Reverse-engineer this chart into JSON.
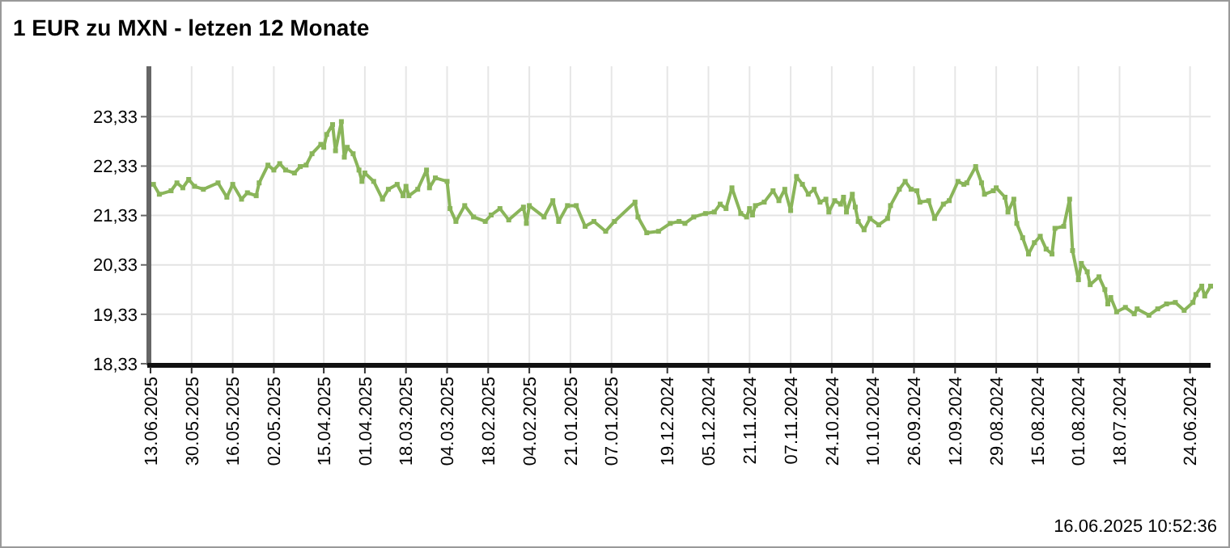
{
  "chart_data": {
    "type": "line",
    "title": "1 EUR zu MXN - letzen 12 Monate",
    "annotations": [
      "16.06.2025 10:52:36"
    ],
    "xlim": [
      "2025-06-13",
      "2024-06-17"
    ],
    "xticks": [
      {
        "value": "2025-06-13",
        "label": "13.06.2025"
      },
      {
        "value": "2025-05-30",
        "label": "30.05.2025"
      },
      {
        "value": "2025-05-16",
        "label": "16.05.2025"
      },
      {
        "value": "2025-05-02",
        "label": "02.05.2025"
      },
      {
        "value": "2025-04-15",
        "label": "15.04.2025"
      },
      {
        "value": "2025-04-01",
        "label": "01.04.2025"
      },
      {
        "value": "2025-03-18",
        "label": "18.03.2025"
      },
      {
        "value": "2025-03-04",
        "label": "04.03.2025"
      },
      {
        "value": "2025-02-18",
        "label": "18.02.2025"
      },
      {
        "value": "2025-02-04",
        "label": "04.02.2025"
      },
      {
        "value": "2025-01-21",
        "label": "21.01.2025"
      },
      {
        "value": "2025-01-07",
        "label": "07.01.2025"
      },
      {
        "value": "2024-12-19",
        "label": "19.12.2024"
      },
      {
        "value": "2024-12-05",
        "label": "05.12.2024"
      },
      {
        "value": "2024-11-21",
        "label": "21.11.2024"
      },
      {
        "value": "2024-11-07",
        "label": "07.11.2024"
      },
      {
        "value": "2024-10-24",
        "label": "24.10.2024"
      },
      {
        "value": "2024-10-10",
        "label": "10.10.2024"
      },
      {
        "value": "2024-09-26",
        "label": "26.09.2024"
      },
      {
        "value": "2024-09-12",
        "label": "12.09.2024"
      },
      {
        "value": "2024-08-29",
        "label": "29.08.2024"
      },
      {
        "value": "2024-08-15",
        "label": "15.08.2024"
      },
      {
        "value": "2024-08-01",
        "label": "01.08.2024"
      },
      {
        "value": "2024-07-18",
        "label": "18.07.2024"
      },
      {
        "value": "2024-06-24",
        "label": "24.06.2024"
      }
    ],
    "ylim": [
      18.33,
      24.35
    ],
    "yticks": [
      {
        "value": 18.33,
        "label": "18,33"
      },
      {
        "value": 19.33,
        "label": "19,33"
      },
      {
        "value": 20.33,
        "label": "20,33"
      },
      {
        "value": 21.33,
        "label": "21,33"
      },
      {
        "value": 22.33,
        "label": "22,33"
      },
      {
        "value": 23.33,
        "label": "23,33"
      }
    ],
    "grid": true,
    "marker": "square",
    "line_style": "solid",
    "series": [
      {
        "color": "#8ab55a",
        "x": [
          "2025-06-12",
          "2025-06-10",
          "2025-06-06",
          "2025-06-04",
          "2025-06-02",
          "2025-05-31",
          "2025-05-29",
          "2025-05-26",
          "2025-05-21",
          "2025-05-18",
          "2025-05-16",
          "2025-05-13",
          "2025-05-11",
          "2025-05-08",
          "2025-05-07",
          "2025-05-04",
          "2025-05-02",
          "2025-04-30",
          "2025-04-28",
          "2025-04-25",
          "2025-04-23",
          "2025-04-21",
          "2025-04-19",
          "2025-04-16",
          "2025-04-15",
          "2025-04-14",
          "2025-04-12",
          "2025-04-11",
          "2025-04-09",
          "2025-04-08",
          "2025-04-07",
          "2025-04-05",
          "2025-04-03",
          "2025-04-02",
          "2025-04-01",
          "2025-03-29",
          "2025-03-26",
          "2025-03-24",
          "2025-03-21",
          "2025-03-19",
          "2025-03-18",
          "2025-03-17",
          "2025-03-14",
          "2025-03-11",
          "2025-03-10",
          "2025-03-08",
          "2025-03-04",
          "2025-03-03",
          "2025-03-01",
          "2025-02-26",
          "2025-02-23",
          "2025-02-19",
          "2025-02-17",
          "2025-02-14",
          "2025-02-11",
          "2025-02-06",
          "2025-02-05",
          "2025-02-04",
          "2025-01-30",
          "2025-01-27",
          "2025-01-25",
          "2025-01-22",
          "2025-01-19",
          "2025-01-16",
          "2025-01-13",
          "2025-01-09",
          "2025-01-06",
          "2024-12-30",
          "2024-12-29",
          "2024-12-26",
          "2024-12-22",
          "2024-12-18",
          "2024-12-15",
          "2024-12-13",
          "2024-12-10",
          "2024-12-06",
          "2024-12-03",
          "2024-12-01",
          "2024-11-29",
          "2024-11-27",
          "2024-11-24",
          "2024-11-22",
          "2024-11-21",
          "2024-11-20",
          "2024-11-19",
          "2024-11-16",
          "2024-11-13",
          "2024-11-11",
          "2024-11-09",
          "2024-11-07",
          "2024-11-05",
          "2024-11-03",
          "2024-11-01",
          "2024-10-30",
          "2024-10-28",
          "2024-10-26",
          "2024-10-25",
          "2024-10-23",
          "2024-10-21",
          "2024-10-20",
          "2024-10-19",
          "2024-10-17",
          "2024-10-16",
          "2024-10-15",
          "2024-10-13",
          "2024-10-11",
          "2024-10-08",
          "2024-10-05",
          "2024-10-04",
          "2024-10-01",
          "2024-09-29",
          "2024-09-27",
          "2024-09-25",
          "2024-09-24",
          "2024-09-21",
          "2024-09-19",
          "2024-09-16",
          "2024-09-14",
          "2024-09-11",
          "2024-09-09",
          "2024-09-08",
          "2024-09-05",
          "2024-09-03",
          "2024-09-02",
          "2024-08-30",
          "2024-08-29",
          "2024-08-26",
          "2024-08-25",
          "2024-08-23",
          "2024-08-22",
          "2024-08-20",
          "2024-08-18",
          "2024-08-16",
          "2024-08-14",
          "2024-08-12",
          "2024-08-10",
          "2024-08-09",
          "2024-08-06",
          "2024-08-04",
          "2024-08-03",
          "2024-08-01",
          "2024-07-31",
          "2024-07-29",
          "2024-07-28",
          "2024-07-25",
          "2024-07-23",
          "2024-07-22",
          "2024-07-21",
          "2024-07-19",
          "2024-07-16",
          "2024-07-13",
          "2024-07-12",
          "2024-07-08",
          "2024-07-05",
          "2024-07-02",
          "2024-06-29",
          "2024-06-26",
          "2024-06-23",
          "2024-06-22",
          "2024-06-20",
          "2024-06-19",
          "2024-06-17"
        ],
        "values": [
          21.96,
          21.76,
          21.83,
          21.99,
          21.89,
          22.06,
          21.92,
          21.86,
          21.99,
          21.7,
          21.96,
          21.66,
          21.79,
          21.73,
          21.99,
          22.35,
          22.25,
          22.38,
          22.25,
          22.19,
          22.32,
          22.35,
          22.58,
          22.77,
          22.71,
          22.97,
          23.17,
          22.64,
          23.23,
          22.51,
          22.71,
          22.58,
          22.25,
          22.02,
          22.19,
          22.02,
          21.66,
          21.86,
          21.96,
          21.73,
          21.92,
          21.73,
          21.86,
          22.25,
          21.89,
          22.09,
          22.02,
          21.47,
          21.21,
          21.53,
          21.3,
          21.21,
          21.34,
          21.47,
          21.24,
          21.5,
          21.17,
          21.53,
          21.3,
          21.63,
          21.21,
          21.53,
          21.53,
          21.11,
          21.21,
          21.01,
          21.21,
          21.6,
          21.3,
          20.98,
          21.01,
          21.17,
          21.21,
          21.17,
          21.3,
          21.37,
          21.4,
          21.56,
          21.47,
          21.89,
          21.37,
          21.3,
          21.47,
          21.34,
          21.53,
          21.6,
          21.83,
          21.63,
          21.86,
          21.43,
          22.12,
          21.96,
          21.76,
          21.86,
          21.6,
          21.66,
          21.4,
          21.63,
          21.56,
          21.7,
          21.4,
          21.76,
          21.5,
          21.21,
          21.04,
          21.27,
          21.14,
          21.27,
          21.53,
          21.86,
          22.02,
          21.86,
          21.83,
          21.6,
          21.63,
          21.27,
          21.56,
          21.63,
          22.02,
          21.96,
          21.99,
          22.32,
          21.99,
          21.76,
          21.83,
          21.89,
          21.7,
          21.4,
          21.66,
          21.17,
          20.88,
          20.55,
          20.78,
          20.91,
          20.65,
          20.55,
          21.07,
          21.11,
          21.66,
          20.62,
          20.03,
          20.36,
          20.19,
          19.93,
          20.09,
          19.83,
          19.54,
          19.67,
          19.38,
          19.47,
          19.34,
          19.44,
          19.31,
          19.44,
          19.54,
          19.57,
          19.41,
          19.57,
          19.73,
          19.9,
          19.7,
          19.9
        ]
      }
    ]
  }
}
